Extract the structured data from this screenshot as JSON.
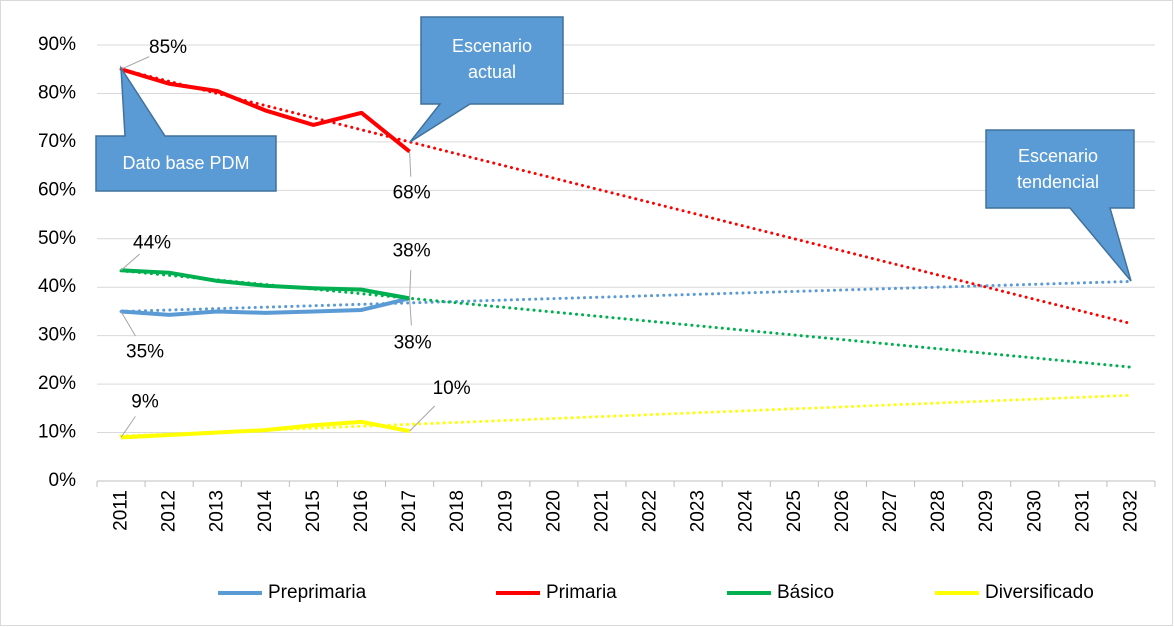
{
  "chart_data": {
    "type": "line",
    "categories": [
      "2011",
      "2012",
      "2013",
      "2014",
      "2015",
      "2016",
      "2017",
      "2018",
      "2019",
      "2020",
      "2021",
      "2022",
      "2023",
      "2024",
      "2025",
      "2026",
      "2027",
      "2028",
      "2029",
      "2030",
      "2031",
      "2032"
    ],
    "series": [
      {
        "name": "Preprimaria",
        "color": "#5b9bd5",
        "values": [
          35,
          34.3,
          35,
          34.7,
          35,
          35.3,
          37.7,
          null,
          null,
          null,
          null,
          null,
          null,
          null,
          null,
          null,
          null,
          null,
          null,
          null,
          null,
          null
        ],
        "value_labels": [
          "35%",
          null,
          null,
          null,
          null,
          null,
          "38%",
          null,
          null,
          null,
          null,
          null,
          null,
          null,
          null,
          null,
          null,
          null,
          null,
          null,
          null,
          null
        ],
        "trend": [
          35,
          41.2
        ]
      },
      {
        "name": "Primaria",
        "color": "#ff0000",
        "values": [
          85,
          82,
          80.5,
          76.5,
          73.5,
          76,
          68,
          null,
          null,
          null,
          null,
          null,
          null,
          null,
          null,
          null,
          null,
          null,
          null,
          null,
          null,
          null
        ],
        "value_labels": [
          "85%",
          null,
          null,
          null,
          null,
          null,
          "68%",
          null,
          null,
          null,
          null,
          null,
          null,
          null,
          null,
          null,
          null,
          null,
          null,
          null,
          null,
          null
        ],
        "trend": [
          85,
          32.5
        ]
      },
      {
        "name": "Básico",
        "color": "#00b050",
        "values": [
          43.5,
          43,
          41.3,
          40.3,
          39.8,
          39.5,
          37.7,
          null,
          null,
          null,
          null,
          null,
          null,
          null,
          null,
          null,
          null,
          null,
          null,
          null,
          null,
          null
        ],
        "value_labels": [
          "44%",
          null,
          null,
          null,
          null,
          null,
          "38%",
          null,
          null,
          null,
          null,
          null,
          null,
          null,
          null,
          null,
          null,
          null,
          null,
          null,
          null,
          null
        ],
        "trend": [
          43.4,
          23.5
        ]
      },
      {
        "name": "Diversificado",
        "color": "#ffff00",
        "values": [
          9,
          9.5,
          10,
          10.5,
          11.5,
          12.2,
          10.3,
          null,
          null,
          null,
          null,
          null,
          null,
          null,
          null,
          null,
          null,
          null,
          null,
          null,
          null,
          null
        ],
        "value_labels": [
          "9%",
          null,
          null,
          null,
          null,
          null,
          "10%",
          null,
          null,
          null,
          null,
          null,
          null,
          null,
          null,
          null,
          null,
          null,
          null,
          null,
          null,
          null
        ],
        "trend": [
          9.3,
          17.7
        ]
      }
    ],
    "ylim": [
      0,
      90
    ],
    "yticks": [
      {
        "value": 0,
        "label": "0%"
      },
      {
        "value": 10,
        "label": "10%"
      },
      {
        "value": 20,
        "label": "20%"
      },
      {
        "value": 30,
        "label": "30%"
      },
      {
        "value": 40,
        "label": "40%"
      },
      {
        "value": 50,
        "label": "50%"
      },
      {
        "value": 60,
        "label": "60%"
      },
      {
        "value": 70,
        "label": "70%"
      },
      {
        "value": 80,
        "label": "80%"
      },
      {
        "value": 90,
        "label": "90%"
      }
    ],
    "grid": true,
    "legend": "bottom",
    "annotations": [
      {
        "text": [
          "Dato base PDM"
        ]
      },
      {
        "text": [
          "Escenario",
          "actual"
        ]
      },
      {
        "text": [
          "Escenario",
          "tendencial"
        ]
      }
    ]
  }
}
